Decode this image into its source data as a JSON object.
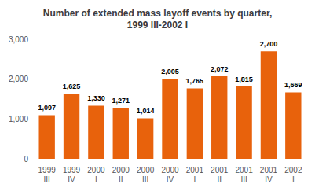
{
  "chart_data": {
    "type": "bar",
    "title": "Number of extended mass layoff events by quarter,\n1999 III-2002 I",
    "categories": [
      "1999\nIII",
      "1999\nIV",
      "2000\nI",
      "2000\nII",
      "2000\nIII",
      "2000\nIV",
      "2001\nI",
      "2001\nII",
      "2001\nIII",
      "2001\nIV",
      "2002\nI"
    ],
    "values": [
      1097,
      1625,
      1330,
      1271,
      1014,
      2005,
      1765,
      2072,
      1815,
      2700,
      1669
    ],
    "value_labels": [
      "1,097",
      "1,625",
      "1,330",
      "1,271",
      "1,014",
      "2,005",
      "1,765",
      "2,072",
      "1,815",
      "2,700",
      "1,669"
    ],
    "data_labels": true,
    "color": "#E8620C",
    "ylim": [
      0,
      3000
    ],
    "yticks": [
      0,
      {
        "value": 1000,
        "label": "1,000"
      },
      {
        "value": 2000,
        "label": "2,000"
      },
      {
        "value": 3000,
        "label": "3,000"
      }
    ],
    "grid": false
  }
}
